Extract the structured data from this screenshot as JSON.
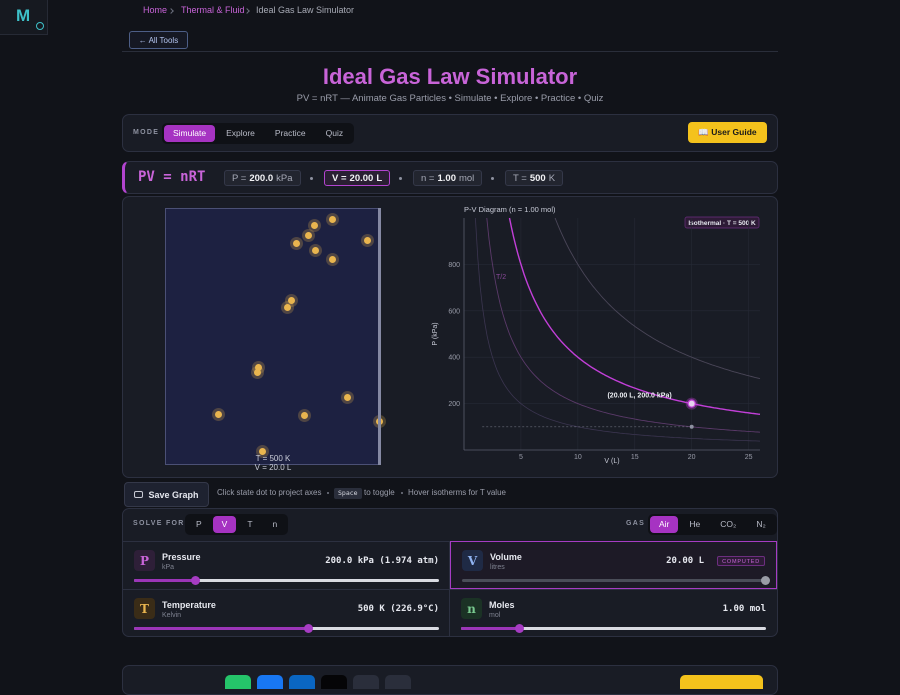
{
  "sidebar": {
    "logo": "M"
  },
  "breadcrumb": [
    "Home",
    "Thermal & Fluid",
    "Ideal Gas Law Simulator"
  ],
  "back_button": "← All Tools",
  "header": {
    "title": "Ideal Gas Law Simulator",
    "subtitle": "PV = nRT — Animate Gas Particles • Simulate • Explore • Practice • Quiz"
  },
  "mode": {
    "label": "MODE",
    "options": [
      "Simulate",
      "Explore",
      "Practice",
      "Quiz"
    ],
    "guide": "📖 User Guide"
  },
  "equation": {
    "formula": "PV = nRT",
    "chips": [
      {
        "label": "P =",
        "value": "200.0",
        "unit": "kPa"
      },
      {
        "label": "V =",
        "value": "20.00",
        "unit": "L"
      },
      {
        "label": "n =",
        "value": "1.00",
        "unit": "mol"
      },
      {
        "label": "T =",
        "value": "500",
        "unit": "K"
      }
    ]
  },
  "simulation": {
    "status": [
      "T = 500 K",
      "V = 20.0 L"
    ]
  },
  "chart_data": {
    "type": "line",
    "title": "P-V Diagram  (n = 1.00 mol)",
    "badge": "Isothermal · T = 500 K",
    "xlabel": "V (L)",
    "ylabel": "P (kPa)",
    "xlim": [
      0,
      26
    ],
    "ylim": [
      0,
      1000
    ],
    "xticks": [
      5,
      10,
      15,
      20,
      25
    ],
    "yticks": [
      200,
      400,
      600,
      800
    ],
    "annotation": "T/2",
    "grid": true,
    "color": "#c23fd8",
    "point": {
      "x": 20,
      "y": 200,
      "label": "(20.00 L,  200.0 kPa)"
    }
  },
  "toolbar": {
    "save": "Save Graph",
    "hints": [
      "Click state dot to project axes",
      "Space",
      "to toggle",
      "Hover isotherms for T value"
    ]
  },
  "solve": {
    "label": "SOLVE FOR",
    "options": [
      "P",
      "V",
      "T",
      "n"
    ],
    "gas_label": "GAS",
    "gases": [
      "Air",
      "He",
      "CO₂",
      "N₂"
    ]
  },
  "controls": [
    {
      "icon": "P",
      "name": "Pressure",
      "unit": "kPa",
      "readout": "200.0 kPa (1.974 atm)"
    },
    {
      "icon": "V",
      "name": "Volume",
      "unit": "litres",
      "readout": "20.00 L",
      "badge": "COMPUTED"
    },
    {
      "icon": "T",
      "name": "Temperature",
      "unit": "Kelvin",
      "readout": "500 K (226.9°C)"
    },
    {
      "icon": "n",
      "name": "Moles",
      "unit": "mol",
      "readout": "1.00 mol"
    }
  ]
}
